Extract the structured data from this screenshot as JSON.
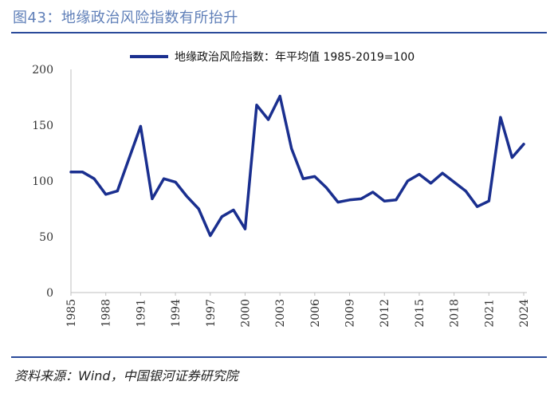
{
  "figure": {
    "title": "图43：地缘政治风险指数有所抬升",
    "source": "资料来源：Wind，中国银河证券研究院"
  },
  "colors": {
    "series": "#1a2f8f",
    "rule": "#2a4a9a",
    "title": "#5f7fb8"
  },
  "chart_data": {
    "type": "line",
    "title": "",
    "xlabel": "",
    "ylabel": "",
    "ylim": [
      0,
      200
    ],
    "yticks": [
      0,
      50,
      100,
      150,
      200
    ],
    "xticks": [
      1985,
      1988,
      1991,
      1994,
      1997,
      2000,
      2003,
      2006,
      2009,
      2012,
      2015,
      2018,
      2021,
      2024
    ],
    "grid": false,
    "legend_position": "top-center",
    "x": [
      1985,
      1986,
      1987,
      1988,
      1989,
      1990,
      1991,
      1992,
      1993,
      1994,
      1995,
      1996,
      1997,
      1998,
      1999,
      2000,
      2001,
      2002,
      2003,
      2004,
      2005,
      2006,
      2007,
      2008,
      2009,
      2010,
      2011,
      2012,
      2013,
      2014,
      2015,
      2016,
      2017,
      2018,
      2019,
      2020,
      2021,
      2022,
      2023,
      2024
    ],
    "series": [
      {
        "name": "地缘政治风险指数：年平均值 1985-2019=100",
        "values": [
          108,
          108,
          102,
          88,
          91,
          120,
          149,
          84,
          102,
          99,
          86,
          75,
          51,
          68,
          74,
          57,
          168,
          155,
          176,
          129,
          102,
          104,
          94,
          81,
          83,
          84,
          90,
          82,
          83,
          100,
          106,
          98,
          107,
          99,
          91,
          77,
          82,
          157,
          121,
          133
        ]
      }
    ]
  }
}
